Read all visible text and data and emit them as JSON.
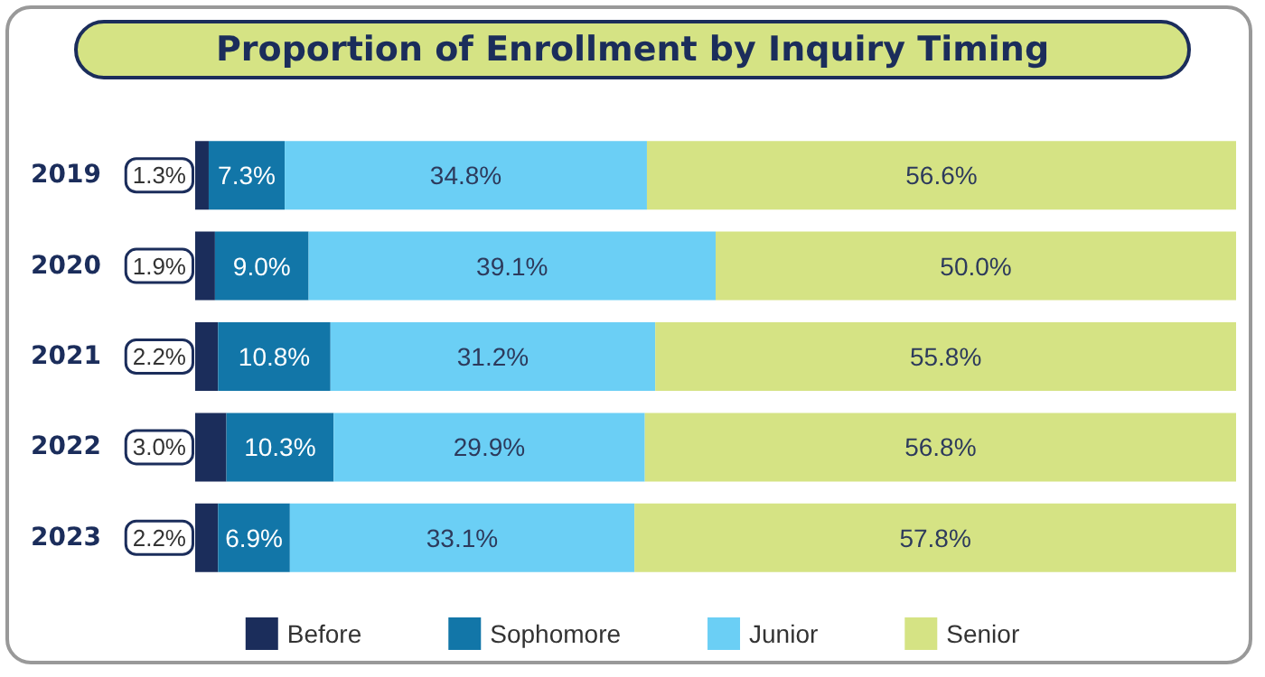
{
  "chart_data": {
    "type": "bar",
    "orientation": "horizontal",
    "stacked": true,
    "tick_labels": "y",
    "title": "Proportion of Enrollment by Inquiry Timing",
    "categories": [
      "2019",
      "2020",
      "2021",
      "2022",
      "2023"
    ],
    "legend": "bottom",
    "series": [
      {
        "name": "Before",
        "color": "#1b2d5b",
        "values": [
          1.3,
          1.9,
          2.2,
          3.0,
          2.2
        ],
        "value_labels": [
          "1.3%",
          "1.9%",
          "2.2%",
          "3.0%",
          "2.2%"
        ]
      },
      {
        "name": "Sophomore",
        "color": "#1276a8",
        "values": [
          7.3,
          9.0,
          10.8,
          10.3,
          6.9
        ],
        "value_labels": [
          "7.3%",
          "9.0%",
          "10.8%",
          "10.3%",
          "6.9%"
        ]
      },
      {
        "name": "Junior",
        "color": "#6bcff5",
        "values": [
          34.8,
          39.1,
          31.2,
          29.9,
          33.1
        ],
        "value_labels": [
          "34.8%",
          "39.1%",
          "31.2%",
          "29.9%",
          "33.1%"
        ]
      },
      {
        "name": "Senior",
        "color": "#d5e384",
        "values": [
          56.6,
          50.0,
          55.8,
          56.8,
          57.8
        ],
        "value_labels": [
          "56.6%",
          "50.0%",
          "55.8%",
          "56.8%",
          "57.8%"
        ]
      }
    ]
  }
}
